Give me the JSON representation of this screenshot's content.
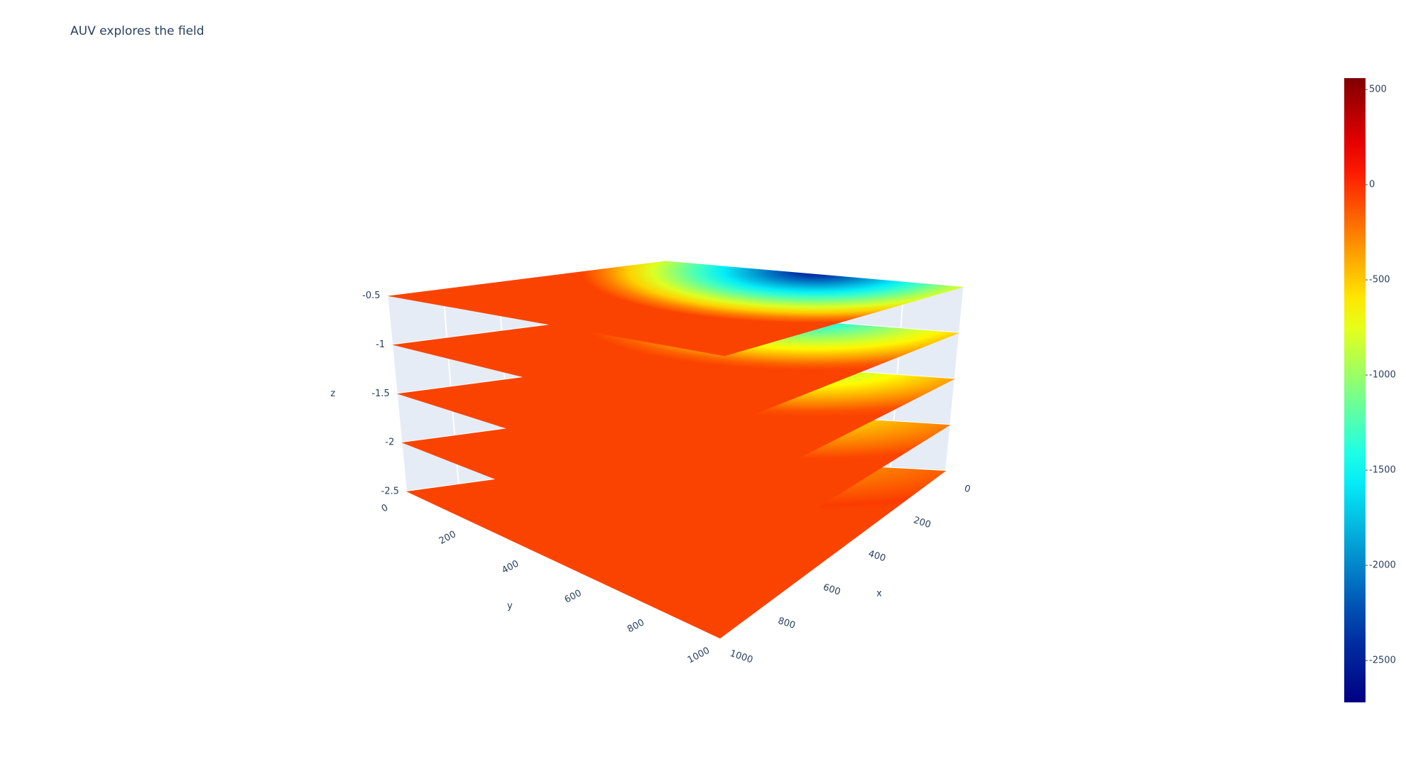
{
  "chart_data": {
    "type": "surface3d",
    "title": "AUV explores the field",
    "xlabel": "x",
    "ylabel": "y",
    "zlabel": "z",
    "xlim": [
      0,
      1000
    ],
    "ylim": [
      0,
      1000
    ],
    "zlim": [
      -2.5,
      -0.5
    ],
    "xticks": [
      0,
      200,
      400,
      600,
      800,
      1000
    ],
    "yticks": [
      0,
      200,
      400,
      600,
      800,
      1000
    ],
    "zticks": [
      -2.5,
      -2,
      -1.5,
      -1,
      -0.5
    ],
    "colorscale": "Jet",
    "clim": [
      -2720,
      560
    ],
    "cticks": [
      -2500,
      -2000,
      -1500,
      -1000,
      -500,
      0,
      500
    ],
    "surfaces": [
      {
        "z": -0.5,
        "min": -2600
      },
      {
        "z": -1,
        "min": -1600
      },
      {
        "z": -1.5,
        "min": -1100
      },
      {
        "z": -2,
        "min": -700
      },
      {
        "z": -2.5,
        "min": -400
      }
    ]
  }
}
